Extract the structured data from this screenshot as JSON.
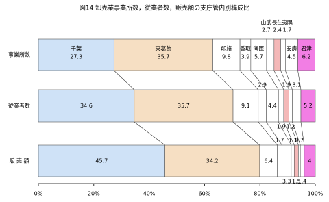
{
  "chart_data": {
    "type": "stacked-bar-horizontal",
    "title": "図14 卸売業事業所数，従業者数，販売額の支庁管内別構成比",
    "categories": [
      "事業所数",
      "従業者数",
      "販 売 額"
    ],
    "series": [
      {
        "name": "千葉",
        "color": "#cfe2f7",
        "values": [
          27.3,
          34.6,
          45.7
        ]
      },
      {
        "name": "東葛飾",
        "color": "#f6dfc3",
        "values": [
          35.7,
          35.7,
          34.2
        ]
      },
      {
        "name": "印旛",
        "color": "#ffffff",
        "values": [
          9.8,
          9.1,
          6.4
        ]
      },
      {
        "name": "香取",
        "color": "#ffffff",
        "values": [
          3.9,
          2.9,
          1.7
        ]
      },
      {
        "name": "海匝",
        "color": "#ffffff",
        "values": [
          5.7,
          4.4,
          3.3
        ]
      },
      {
        "name": "山武",
        "color": "#ffffff",
        "values": [
          2.7,
          1.9,
          1.1
        ]
      },
      {
        "name": "長生",
        "color": "#f4b8b8",
        "values": [
          2.4,
          1.9,
          1.5
        ]
      },
      {
        "name": "夷隅",
        "color": "#ffffff",
        "values": [
          1.7,
          1.2,
          0.7
        ]
      },
      {
        "name": "安房",
        "color": "#ffffff",
        "values": [
          4.5,
          3.1,
          1.4
        ]
      },
      {
        "name": "君津",
        "color": "#f27ee4",
        "values": [
          6.2,
          5.2,
          4.0
        ]
      }
    ],
    "xlim": [
      0,
      100
    ],
    "xticks": [
      {
        "value": 0,
        "label": "0%"
      },
      {
        "value": 20,
        "label": "20%"
      },
      {
        "value": 40,
        "label": "40%"
      },
      {
        "value": 60,
        "label": "60%"
      },
      {
        "value": 80,
        "label": "80%"
      },
      {
        "value": 100,
        "label": "100%"
      }
    ]
  }
}
